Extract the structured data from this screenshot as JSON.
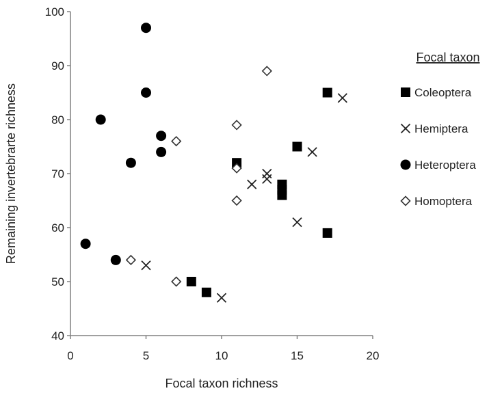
{
  "chart_data": {
    "type": "scatter",
    "xlabel": "Focal taxon richness",
    "ylabel": "Remaining invertebrarte richness",
    "xlim": [
      0,
      20
    ],
    "ylim": [
      40,
      100
    ],
    "x_ticks": [
      0,
      5,
      10,
      15,
      20
    ],
    "y_ticks": [
      40,
      50,
      60,
      70,
      80,
      90,
      100
    ],
    "grid": false,
    "legend": {
      "title": "Focal taxon",
      "position": "right"
    },
    "series": [
      {
        "name": "Coleoptera",
        "marker": "filled-square",
        "color": "#000000",
        "points": [
          [
            8,
            50
          ],
          [
            9,
            48
          ],
          [
            11,
            72
          ],
          [
            14,
            68
          ],
          [
            14,
            67
          ],
          [
            14,
            66
          ],
          [
            15,
            75
          ],
          [
            17,
            85
          ],
          [
            17,
            59
          ]
        ]
      },
      {
        "name": "Hemiptera",
        "marker": "cross",
        "color": "#222222",
        "points": [
          [
            5,
            53
          ],
          [
            10,
            47
          ],
          [
            12,
            68
          ],
          [
            13,
            70
          ],
          [
            13,
            69
          ],
          [
            15,
            61
          ],
          [
            16,
            74
          ],
          [
            18,
            84
          ]
        ]
      },
      {
        "name": "Heteroptera",
        "marker": "filled-circle",
        "color": "#000000",
        "points": [
          [
            1,
            57
          ],
          [
            2,
            80
          ],
          [
            3,
            54
          ],
          [
            4,
            72
          ],
          [
            5,
            97
          ],
          [
            5,
            85
          ],
          [
            6,
            77
          ],
          [
            6,
            74
          ]
        ]
      },
      {
        "name": "Homoptera",
        "marker": "open-diamond",
        "color": "#333333",
        "points": [
          [
            4,
            54
          ],
          [
            7,
            50
          ],
          [
            7,
            76
          ],
          [
            11,
            79
          ],
          [
            11,
            71
          ],
          [
            11,
            65
          ],
          [
            13,
            89
          ]
        ]
      }
    ]
  }
}
